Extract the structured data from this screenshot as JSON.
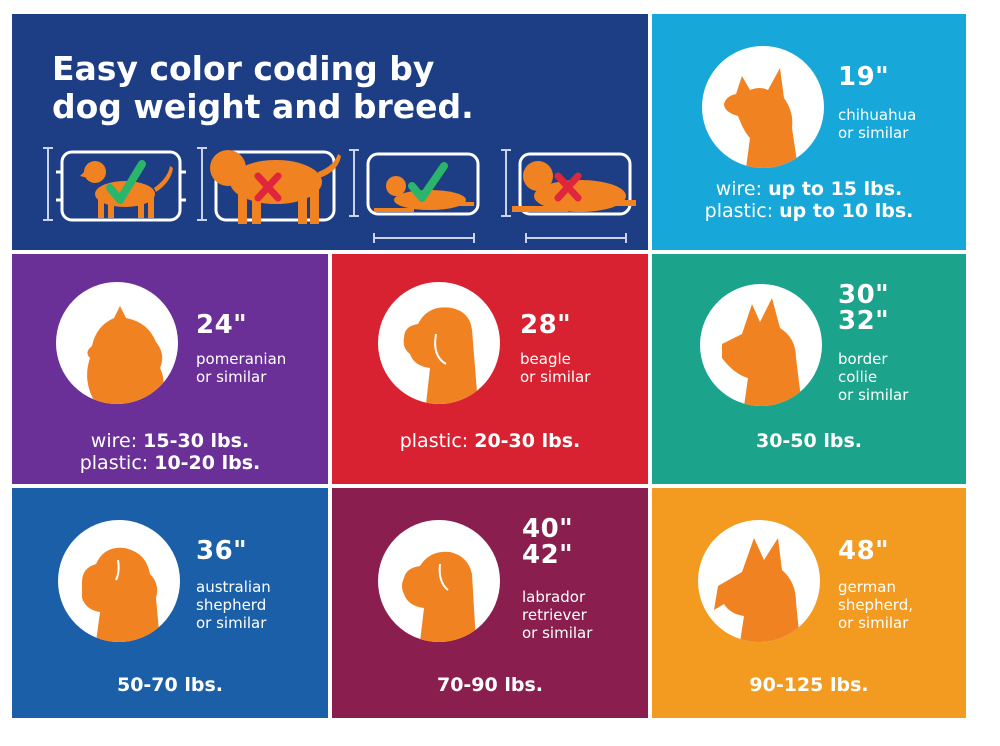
{
  "header": {
    "title_line1": "Easy color coding by",
    "title_line2": "dog weight and breed.",
    "crate_examples": [
      {
        "mark": "check-icon",
        "pose": "standing"
      },
      {
        "mark": "x-icon",
        "pose": "standing"
      },
      {
        "mark": "check-icon",
        "pose": "lying"
      },
      {
        "mark": "x-icon",
        "pose": "lying"
      }
    ]
  },
  "colors": {
    "navy": "#1d3e85",
    "cyan": "#17a7d9",
    "purple": "#6a3098",
    "red": "#d92231",
    "teal": "#1ba38c",
    "blue": "#1a5fa8",
    "maroon": "#8a1e4f",
    "orange": "#f39a21",
    "dog_orange": "#f08222",
    "check_green": "#2bb56a",
    "x_red": "#e0263c"
  },
  "tiles": [
    {
      "id": "19",
      "size_lines": [
        "19\""
      ],
      "breed_lines": [
        "chihuahua",
        "or similar"
      ],
      "weights": [
        {
          "label": "wire:",
          "value": "up to 15 lbs."
        },
        {
          "label": "plastic:",
          "value": "up to 10 lbs."
        }
      ],
      "icon": "chihuahua-icon"
    },
    {
      "id": "24",
      "size_lines": [
        "24\""
      ],
      "breed_lines": [
        "pomeranian",
        "or similar"
      ],
      "weights": [
        {
          "label": "wire:",
          "value": "15-30 lbs."
        },
        {
          "label": "plastic:",
          "value": "10-20 lbs."
        }
      ],
      "icon": "pomeranian-icon"
    },
    {
      "id": "28",
      "size_lines": [
        "28\""
      ],
      "breed_lines": [
        "beagle",
        "or similar"
      ],
      "weights": [
        {
          "label": "plastic:",
          "value": "20-30 lbs."
        }
      ],
      "icon": "beagle-icon"
    },
    {
      "id": "30",
      "size_lines": [
        "30\"",
        "32\""
      ],
      "breed_lines": [
        "border",
        "collie",
        "or similar"
      ],
      "weights": [
        {
          "label": "",
          "value": "30-50 lbs."
        }
      ],
      "icon": "border-collie-icon"
    },
    {
      "id": "36",
      "size_lines": [
        "36\""
      ],
      "breed_lines": [
        "australian",
        "shepherd",
        "or similar"
      ],
      "weights": [
        {
          "label": "",
          "value": "50-70 lbs."
        }
      ],
      "icon": "australian-shepherd-icon"
    },
    {
      "id": "40",
      "size_lines": [
        "40\"",
        "42\""
      ],
      "breed_lines": [
        "labrador",
        "retriever",
        "or similar"
      ],
      "weights": [
        {
          "label": "",
          "value": "70-90 lbs."
        }
      ],
      "icon": "labrador-icon"
    },
    {
      "id": "48",
      "size_lines": [
        "48\""
      ],
      "breed_lines": [
        "german",
        "shepherd,",
        "or similar"
      ],
      "weights": [
        {
          "label": "",
          "value": "90-125 lbs."
        }
      ],
      "icon": "german-shepherd-icon"
    }
  ]
}
